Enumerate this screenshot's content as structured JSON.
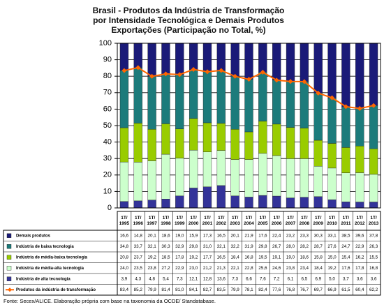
{
  "chart_data": {
    "type": "bar",
    "stacked": true,
    "title": [
      "Brasil - Produtos da Indústria de Transformação",
      "por Intensidade Tecnológica e Demais Produtos",
      "Exportações (Participação no Total, %)"
    ],
    "categories": [
      "1T/ 1995",
      "1T/ 1996",
      "1T/ 1997",
      "1T/ 1998",
      "1T/ 1999",
      "1T/ 2000",
      "1T/ 2001",
      "1T/ 2002",
      "1T/ 2003",
      "1T/ 2004",
      "1T/ 2005",
      "1T/ 2006",
      "1T/ 2007",
      "1T/ 2008",
      "1T/ 2009",
      "1T/ 2010",
      "1T/ 2011",
      "1T/ 2012",
      "1T/ 2013"
    ],
    "ylim": [
      0,
      100
    ],
    "yticks": [
      0,
      10,
      20,
      30,
      40,
      50,
      60,
      70,
      80,
      90,
      100
    ],
    "grid": true,
    "series": [
      {
        "name": "Demais produtos",
        "color": "#1a1a78",
        "values": [
          16.6,
          14.8,
          20.1,
          18.6,
          19.0,
          15.9,
          17.3,
          16.5,
          20.1,
          21.9,
          17.6,
          22.4,
          23.2,
          23.3,
          30.3,
          33.1,
          38.5,
          39.6,
          37.8
        ],
        "value_labels": [
          "16,6",
          "14,8",
          "20,1",
          "18,6",
          "19,0",
          "15,9",
          "17,3",
          "16,5",
          "20,1",
          "21,9",
          "17,6",
          "22,4",
          "23,2",
          "23,3",
          "30,3",
          "33,1",
          "38,5",
          "39,6",
          "37,8"
        ]
      },
      {
        "name": "Indústria de baixa tecnologia",
        "color": "#1c7b7b",
        "values": [
          34.8,
          33.7,
          32.1,
          30.3,
          32.9,
          29.8,
          31.0,
          32.1,
          32.2,
          31.9,
          29.8,
          26.7,
          28.0,
          28.2,
          28.7,
          27.6,
          24.7,
          22.9,
          26.3
        ],
        "value_labels": [
          "34,8",
          "33,7",
          "32,1",
          "30,3",
          "32,9",
          "29,8",
          "31,0",
          "32,1",
          "32,2",
          "31,9",
          "29,8",
          "26,7",
          "28,0",
          "28,2",
          "28,7",
          "27,6",
          "24,7",
          "22,9",
          "26,3"
        ]
      },
      {
        "name": "Indústria de média-baixa tecnologia",
        "color": "#99cc00",
        "values": [
          20.8,
          23.7,
          19.2,
          18.5,
          17.8,
          19.2,
          17.7,
          16.5,
          18.4,
          16.8,
          19.5,
          19.1,
          19.0,
          18.6,
          15.8,
          15.0,
          15.4,
          16.2,
          15.5
        ],
        "value_labels": [
          "20,8",
          "23,7",
          "19,2",
          "18,5",
          "17,8",
          "19,2",
          "17,7",
          "16,5",
          "18,4",
          "16,8",
          "19,5",
          "19,1",
          "19,0",
          "18,6",
          "15,8",
          "15,0",
          "15,4",
          "16,2",
          "15,5"
        ]
      },
      {
        "name": "Indústria de média-alta tecnologia",
        "color": "#ccffcc",
        "values": [
          24.0,
          23.5,
          23.8,
          27.2,
          22.9,
          23.0,
          21.2,
          21.3,
          22.1,
          22.8,
          25.6,
          24.6,
          23.8,
          23.4,
          18.4,
          19.2,
          17.6,
          17.8,
          16.8
        ],
        "value_labels": [
          "24,0",
          "23,5",
          "23,8",
          "27,2",
          "22,9",
          "23,0",
          "21,2",
          "21,3",
          "22,1",
          "22,8",
          "25,6",
          "24,6",
          "23,8",
          "23,4",
          "18,4",
          "19,2",
          "17,6",
          "17,8",
          "16,8"
        ]
      },
      {
        "name": "Indústria de alta tecnologia",
        "color": "#333399",
        "values": [
          3.9,
          4.3,
          4.8,
          5.4,
          7.3,
          12.1,
          12.8,
          13.6,
          7.3,
          6.6,
          7.6,
          7.2,
          6.1,
          6.5,
          6.9,
          5.0,
          3.7,
          3.6,
          3.6
        ],
        "value_labels": [
          "3,9",
          "4,3",
          "4,8",
          "5,4",
          "7,3",
          "12,1",
          "12,8",
          "13,6",
          "7,3",
          "6,6",
          "7,6",
          "7,2",
          "6,1",
          "6,5",
          "6,9",
          "5,0",
          "3,7",
          "3,6",
          "3,6"
        ]
      },
      {
        "name": "Produtos da indústria de transformação",
        "color": "#ff6600",
        "type": "line",
        "values": [
          83.4,
          85.2,
          79.9,
          81.4,
          81.0,
          84.1,
          82.7,
          83.5,
          79.9,
          78.1,
          82.4,
          77.6,
          76.8,
          76.7,
          69.7,
          66.9,
          61.5,
          60.4,
          62.2
        ],
        "value_labels": [
          "83,4",
          "85,2",
          "79,9",
          "81,4",
          "81,0",
          "84,1",
          "82,7",
          "83,5",
          "79,9",
          "78,1",
          "82,4",
          "77,6",
          "76,8",
          "76,7",
          "69,7",
          "66,9",
          "61,5",
          "60,4",
          "62,2"
        ]
      }
    ],
    "source": "Fonte: Secex/ALICE. Elaboração própria com base na taxonomia da OCDE/ Standatabase."
  }
}
